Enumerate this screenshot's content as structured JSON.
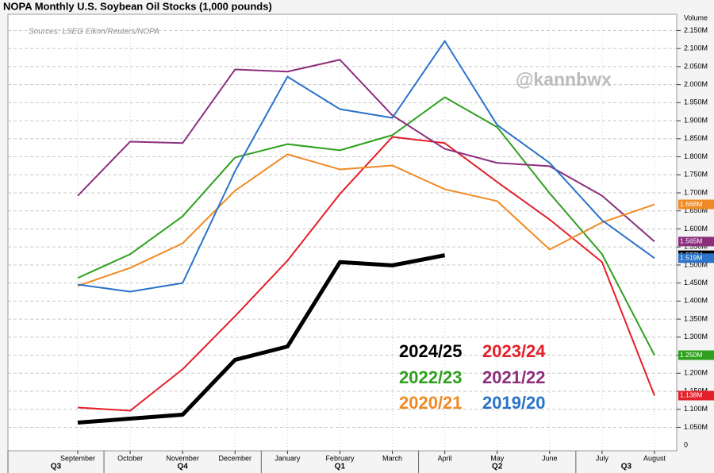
{
  "chart_data": {
    "type": "line",
    "title": "NOPA Monthly U.S. Soybean Oil Stocks (1,000 pounds)",
    "source": "Sources: LSEG Eikon/Reuters/NOPA",
    "watermark": "@kannbwx",
    "y_axis_title": "Volume",
    "axis_break_label": "0",
    "categories": [
      "September",
      "October",
      "November",
      "December",
      "January",
      "February",
      "March",
      "April",
      "May",
      "June",
      "July",
      "August"
    ],
    "quarters": [
      "Q3",
      "Q4",
      "Q1",
      "Q2",
      "Q3"
    ],
    "ylim": [
      0.985,
      2.195
    ],
    "yticks": [
      {
        "value": 1.05,
        "label": "1.050M"
      },
      {
        "value": 1.1,
        "label": "1.100M"
      },
      {
        "value": 1.15,
        "label": "1.150M"
      },
      {
        "value": 1.2,
        "label": "1.200M"
      },
      {
        "value": 1.25,
        "label": "1.250M"
      },
      {
        "value": 1.3,
        "label": "1.300M"
      },
      {
        "value": 1.35,
        "label": "1.350M"
      },
      {
        "value": 1.4,
        "label": "1.400M"
      },
      {
        "value": 1.45,
        "label": "1.450M"
      },
      {
        "value": 1.5,
        "label": "1.500M"
      },
      {
        "value": 1.55,
        "label": "1.550M"
      },
      {
        "value": 1.6,
        "label": "1.600M"
      },
      {
        "value": 1.65,
        "label": "1.650M"
      },
      {
        "value": 1.7,
        "label": "1.700M"
      },
      {
        "value": 1.75,
        "label": "1.750M"
      },
      {
        "value": 1.8,
        "label": "1.800M"
      },
      {
        "value": 1.85,
        "label": "1.850M"
      },
      {
        "value": 1.9,
        "label": "1.900M"
      },
      {
        "value": 1.95,
        "label": "1.950M"
      },
      {
        "value": 2.0,
        "label": "2.000M"
      },
      {
        "value": 2.05,
        "label": "2.050M"
      },
      {
        "value": 2.1,
        "label": "2.100M"
      },
      {
        "value": 2.15,
        "label": "2.150M"
      }
    ],
    "grid": true,
    "series": [
      {
        "name": "2024/25",
        "color": "#000000",
        "width": 5,
        "values": [
          1.063,
          1.074,
          1.085,
          1.237,
          1.274,
          1.508,
          1.499,
          1.527,
          null,
          null,
          null,
          null
        ],
        "value_labels": [
          null,
          null,
          null,
          null,
          null,
          null,
          null,
          "1.527M",
          null,
          null,
          null,
          null
        ]
      },
      {
        "name": "2023/24",
        "color": "#e3202a",
        "width": 2,
        "values": [
          1.105,
          1.096,
          1.211,
          1.358,
          1.512,
          1.697,
          1.855,
          1.838,
          1.73,
          1.626,
          1.508,
          1.138
        ],
        "value_labels": [
          null,
          null,
          null,
          null,
          null,
          null,
          null,
          null,
          null,
          null,
          null,
          "1.138M"
        ]
      },
      {
        "name": "2022/23",
        "color": "#2ea01e",
        "width": 2,
        "values": [
          1.464,
          1.53,
          1.635,
          1.798,
          1.835,
          1.818,
          1.86,
          1.965,
          1.882,
          1.699,
          1.53,
          1.25
        ],
        "value_labels": [
          null,
          null,
          null,
          null,
          null,
          null,
          null,
          null,
          null,
          null,
          null,
          "1.250M"
        ]
      },
      {
        "name": "2021/22",
        "color": "#8b2f7d",
        "width": 2,
        "values": [
          1.692,
          1.842,
          1.838,
          2.042,
          2.036,
          2.069,
          1.915,
          1.822,
          1.783,
          1.774,
          1.692,
          1.565
        ],
        "value_labels": [
          null,
          null,
          null,
          null,
          null,
          null,
          null,
          null,
          null,
          null,
          null,
          "1.565M"
        ]
      },
      {
        "name": "2020/21",
        "color": "#f08a24",
        "width": 2,
        "values": [
          1.442,
          1.492,
          1.56,
          1.706,
          1.807,
          1.765,
          1.776,
          1.71,
          1.677,
          1.543,
          1.618,
          1.668
        ],
        "value_labels": [
          null,
          null,
          null,
          null,
          null,
          null,
          null,
          null,
          null,
          null,
          null,
          "1.668M"
        ]
      },
      {
        "name": "2019/20",
        "color": "#2a73c8",
        "width": 2,
        "values": [
          1.446,
          1.426,
          1.45,
          1.76,
          2.022,
          1.932,
          1.908,
          2.121,
          1.888,
          1.783,
          1.624,
          1.519
        ],
        "value_labels": [
          null,
          null,
          null,
          null,
          null,
          null,
          null,
          null,
          null,
          null,
          null,
          "1.519M"
        ]
      }
    ]
  }
}
